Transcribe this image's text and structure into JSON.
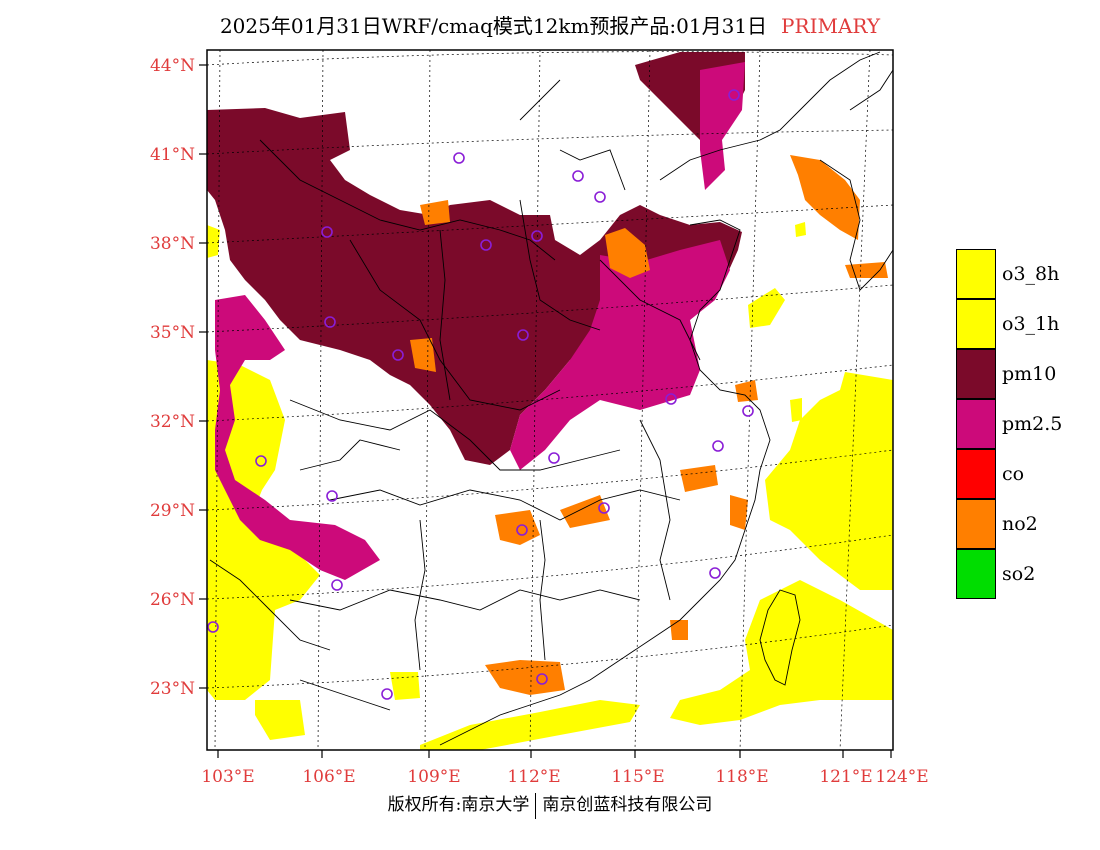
{
  "title": {
    "main": "2025年01月31日WRF/cmaq模式12km预报产品:01月31日",
    "tag": "PRIMARY",
    "tag_color": "#e03c3c"
  },
  "axes": {
    "lat_labels": [
      "44°N",
      "41°N",
      "38°N",
      "35°N",
      "32°N",
      "29°N",
      "26°N",
      "23°N"
    ],
    "lon_labels": [
      "103°E",
      "106°E",
      "109°E",
      "112°E",
      "115°E",
      "118°E",
      "121°E",
      "124°E"
    ],
    "label_color": "#e03c3c"
  },
  "legend": [
    {
      "label": "o3_8h",
      "color": "#ffff00"
    },
    {
      "label": "o3_1h",
      "color": "#ffff00"
    },
    {
      "label": "pm10",
      "color": "#7b0a2a"
    },
    {
      "label": "pm2.5",
      "color": "#cc0a7a"
    },
    {
      "label": "co",
      "color": "#ff0000"
    },
    {
      "label": "no2",
      "color": "#ff7f00"
    },
    {
      "label": "so2",
      "color": "#00dd00"
    }
  ],
  "footer": {
    "left": "版权所有:南京大学",
    "right": "南京创蓝科技有限公司"
  },
  "station_marker_color": "#8a1ed6"
}
